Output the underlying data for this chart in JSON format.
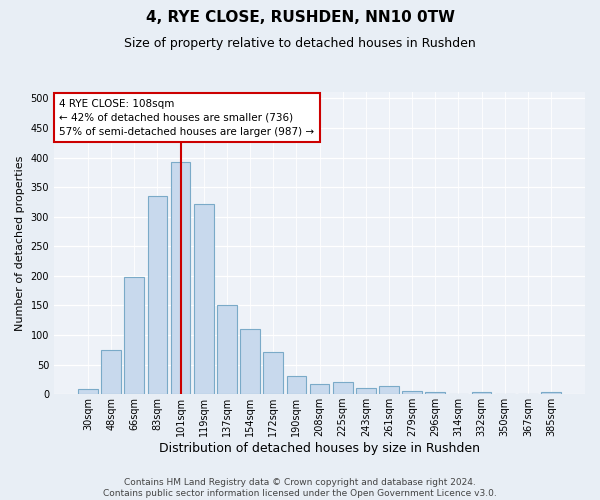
{
  "title": "4, RYE CLOSE, RUSHDEN, NN10 0TW",
  "subtitle": "Size of property relative to detached houses in Rushden",
  "xlabel": "Distribution of detached houses by size in Rushden",
  "ylabel": "Number of detached properties",
  "categories": [
    "30sqm",
    "48sqm",
    "66sqm",
    "83sqm",
    "101sqm",
    "119sqm",
    "137sqm",
    "154sqm",
    "172sqm",
    "190sqm",
    "208sqm",
    "225sqm",
    "243sqm",
    "261sqm",
    "279sqm",
    "296sqm",
    "314sqm",
    "332sqm",
    "350sqm",
    "367sqm",
    "385sqm"
  ],
  "values": [
    8,
    75,
    198,
    335,
    393,
    322,
    150,
    110,
    72,
    30,
    17,
    20,
    11,
    13,
    5,
    4,
    0,
    4,
    0,
    0,
    4
  ],
  "bar_color": "#c8d9ed",
  "bar_edge_color": "#7aaac8",
  "vline_x": 4.0,
  "vline_color": "#cc0000",
  "annotation_text": "4 RYE CLOSE: 108sqm\n← 42% of detached houses are smaller (736)\n57% of semi-detached houses are larger (987) →",
  "annotation_box_color": "#ffffff",
  "annotation_box_edge": "#cc0000",
  "ylim": [
    0,
    510
  ],
  "yticks": [
    0,
    50,
    100,
    150,
    200,
    250,
    300,
    350,
    400,
    450,
    500
  ],
  "footer": "Contains HM Land Registry data © Crown copyright and database right 2024.\nContains public sector information licensed under the Open Government Licence v3.0.",
  "bg_color": "#e8eef5",
  "plot_bg_color": "#eef2f8",
  "title_fontsize": 11,
  "subtitle_fontsize": 9,
  "xlabel_fontsize": 9,
  "ylabel_fontsize": 8,
  "tick_fontsize": 7,
  "footer_fontsize": 6.5,
  "ann_fontsize": 7.5
}
